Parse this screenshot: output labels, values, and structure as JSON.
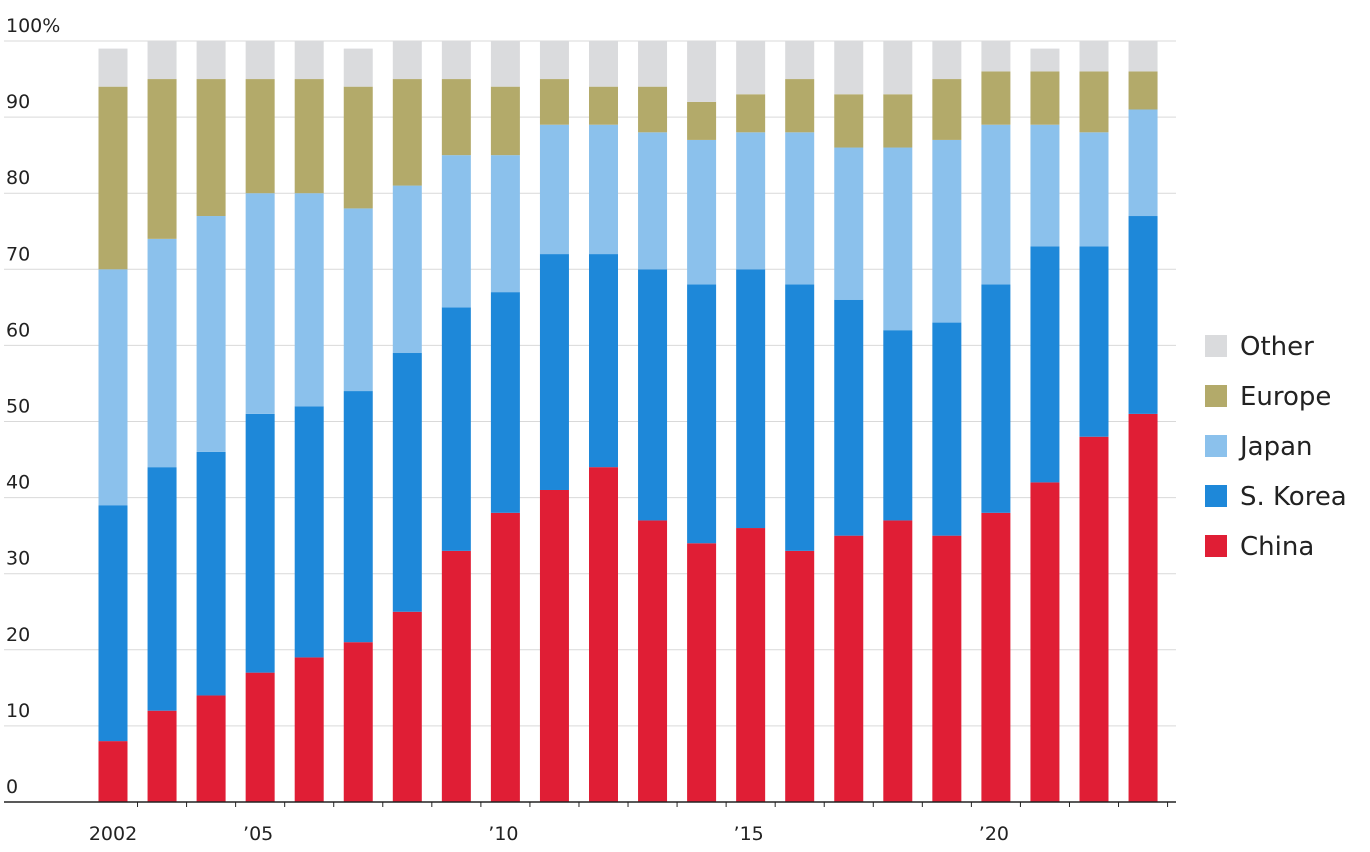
{
  "chart_data": {
    "type": "bar",
    "stacked": true,
    "ytick_labels": [
      "0",
      "10",
      "20",
      "30",
      "40",
      "50",
      "60",
      "70",
      "80",
      "90",
      "100%"
    ],
    "ylim": [
      0,
      100
    ],
    "grid": true,
    "legend_position": "right",
    "x": [
      2002,
      2003,
      2004,
      2005,
      2006,
      2007,
      2008,
      2009,
      2010,
      2011,
      2012,
      2013,
      2014,
      2015,
      2016,
      2017,
      2018,
      2019,
      2020,
      2021,
      2022,
      2023
    ],
    "xtick_labels": [
      {
        "year": 2002,
        "label": "2002"
      },
      {
        "year": 2005,
        "label": "’05"
      },
      {
        "year": 2010,
        "label": "’10"
      },
      {
        "year": 2015,
        "label": "’15"
      },
      {
        "year": 2020,
        "label": "’20"
      }
    ],
    "series": [
      {
        "name": "China",
        "color": "#e01e35",
        "values": [
          8,
          12,
          14,
          17,
          19,
          21,
          25,
          33,
          38,
          41,
          44,
          37,
          34,
          36,
          33,
          35,
          37,
          35,
          38,
          42,
          48,
          51
        ]
      },
      {
        "name": "S. Korea",
        "color": "#1e88d9",
        "values": [
          31,
          32,
          32,
          34,
          33,
          33,
          34,
          32,
          29,
          31,
          28,
          33,
          34,
          34,
          35,
          31,
          25,
          28,
          30,
          31,
          25,
          26
        ]
      },
      {
        "name": "Japan",
        "color": "#8bc1ec",
        "values": [
          31,
          30,
          31,
          29,
          28,
          24,
          22,
          20,
          18,
          17,
          17,
          18,
          19,
          18,
          20,
          20,
          24,
          24,
          21,
          16,
          15,
          14
        ]
      },
      {
        "name": "Europe",
        "color": "#b3aa6a",
        "values": [
          24,
          21,
          18,
          15,
          15,
          16,
          14,
          10,
          9,
          6,
          5,
          6,
          5,
          5,
          7,
          7,
          7,
          8,
          7,
          7,
          8,
          5
        ]
      },
      {
        "name": "Other",
        "color": "#dadbdd",
        "values": [
          5,
          5,
          5,
          5,
          5,
          5,
          5,
          5,
          6,
          5,
          6,
          6,
          8,
          7,
          5,
          7,
          7,
          5,
          4,
          3,
          4,
          4
        ]
      }
    ],
    "legend_order": [
      "Other",
      "Europe",
      "Japan",
      "S. Korea",
      "China"
    ]
  }
}
